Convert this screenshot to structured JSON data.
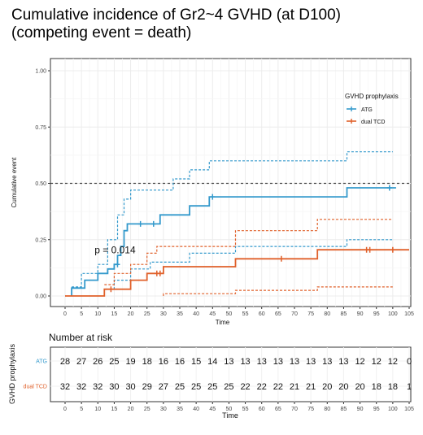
{
  "title_line1": "Cumulative incidence of Gr2~4 GVHD (at D100)",
  "title_line2": "(competing event = death)",
  "chart_data": {
    "type": "line",
    "xlabel": "Time",
    "ylabel": "Cumulative event",
    "xlim": [
      0,
      105
    ],
    "ylim": [
      0,
      1
    ],
    "x_ticks": [
      0,
      5,
      10,
      15,
      20,
      25,
      30,
      35,
      40,
      45,
      50,
      55,
      60,
      65,
      70,
      75,
      80,
      85,
      90,
      95,
      100,
      105
    ],
    "y_ticks": [
      "0.00",
      "0.25",
      "0.50",
      "0.75",
      "1.00"
    ],
    "y_tick_values": [
      0,
      0.25,
      0.5,
      0.75,
      1.0
    ],
    "reference_line_y": 0.5,
    "annotation": "p = 0.014",
    "annotation_pos": [
      9,
      0.19
    ],
    "grid": true,
    "legend": {
      "title": "GVHD prophylaxis",
      "placement": "top-right"
    },
    "series": [
      {
        "name": "ATG",
        "color": "#3399cc",
        "steps": [
          [
            2,
            0
          ],
          [
            2,
            0.035
          ],
          [
            6,
            0.035
          ],
          [
            6,
            0.07
          ],
          [
            10,
            0.07
          ],
          [
            10,
            0.1
          ],
          [
            13,
            0.1
          ],
          [
            13,
            0.12
          ],
          [
            15,
            0.12
          ],
          [
            15,
            0.14
          ],
          [
            16,
            0.14
          ],
          [
            16,
            0.18
          ],
          [
            17,
            0.18
          ],
          [
            17,
            0.22
          ],
          [
            18,
            0.22
          ],
          [
            18,
            0.29
          ],
          [
            19,
            0.29
          ],
          [
            19,
            0.32
          ],
          [
            29,
            0.32
          ],
          [
            29,
            0.36
          ],
          [
            38,
            0.36
          ],
          [
            38,
            0.4
          ],
          [
            44,
            0.4
          ],
          [
            44,
            0.44
          ],
          [
            86,
            0.44
          ],
          [
            86,
            0.48
          ],
          [
            101,
            0.48
          ]
        ],
        "upper": [
          [
            2,
            0.04
          ],
          [
            5,
            0.04
          ],
          [
            5,
            0.1
          ],
          [
            10,
            0.1
          ],
          [
            10,
            0.14
          ],
          [
            13,
            0.14
          ],
          [
            13,
            0.25
          ],
          [
            16,
            0.25
          ],
          [
            16,
            0.36
          ],
          [
            18,
            0.36
          ],
          [
            18,
            0.43
          ],
          [
            20,
            0.43
          ],
          [
            20,
            0.47
          ],
          [
            33,
            0.47
          ],
          [
            33,
            0.52
          ],
          [
            38,
            0.52
          ],
          [
            38,
            0.56
          ],
          [
            44,
            0.56
          ],
          [
            44,
            0.6
          ],
          [
            86,
            0.6
          ],
          [
            86,
            0.64
          ],
          [
            100,
            0.64
          ]
        ],
        "lower": [
          [
            12,
            0
          ],
          [
            12,
            0.03
          ],
          [
            15,
            0.03
          ],
          [
            15,
            0.07
          ],
          [
            20,
            0.07
          ],
          [
            20,
            0.12
          ],
          [
            26,
            0.12
          ],
          [
            26,
            0.15
          ],
          [
            38,
            0.15
          ],
          [
            38,
            0.19
          ],
          [
            52,
            0.19
          ],
          [
            52,
            0.22
          ],
          [
            86,
            0.22
          ],
          [
            86,
            0.25
          ],
          [
            100,
            0.25
          ]
        ],
        "censored": [
          [
            16,
            0.14
          ],
          [
            23,
            0.32
          ],
          [
            27,
            0.32
          ],
          [
            45,
            0.44
          ],
          [
            99,
            0.48
          ]
        ]
      },
      {
        "name": "dual TCD",
        "color": "#e0602a",
        "steps": [
          [
            0,
            0
          ],
          [
            12,
            0
          ],
          [
            12,
            0.03
          ],
          [
            20,
            0.03
          ],
          [
            20,
            0.07
          ],
          [
            25,
            0.07
          ],
          [
            25,
            0.1
          ],
          [
            30,
            0.1
          ],
          [
            30,
            0.13
          ],
          [
            52,
            0.13
          ],
          [
            52,
            0.165
          ],
          [
            77,
            0.165
          ],
          [
            77,
            0.205
          ],
          [
            105,
            0.205
          ]
        ],
        "upper": [
          [
            12,
            0.05
          ],
          [
            15,
            0.05
          ],
          [
            15,
            0.1
          ],
          [
            20,
            0.1
          ],
          [
            20,
            0.14
          ],
          [
            25,
            0.14
          ],
          [
            25,
            0.19
          ],
          [
            28,
            0.19
          ],
          [
            28,
            0.22
          ],
          [
            52,
            0.22
          ],
          [
            52,
            0.29
          ],
          [
            77,
            0.29
          ],
          [
            77,
            0.34
          ],
          [
            100,
            0.34
          ]
        ],
        "lower": [
          [
            30,
            0
          ],
          [
            30,
            0.01
          ],
          [
            52,
            0.01
          ],
          [
            52,
            0.025
          ],
          [
            77,
            0.025
          ],
          [
            77,
            0.04
          ],
          [
            100,
            0.04
          ]
        ],
        "censored": [
          [
            14,
            0.03
          ],
          [
            28,
            0.1
          ],
          [
            29,
            0.1
          ],
          [
            66,
            0.165
          ],
          [
            92,
            0.205
          ],
          [
            93,
            0.205
          ],
          [
            100,
            0.205
          ]
        ]
      }
    ],
    "risk_table": {
      "title": "Number at risk",
      "ylabel": "GVHD prophylaxis",
      "xlabel": "Time",
      "rows": [
        {
          "label": "ATG",
          "color": "#3399cc",
          "values": [
            "28",
            "27",
            "26",
            "25",
            "19",
            "18",
            "16",
            "16",
            "15",
            "14",
            "13",
            "13",
            "13",
            "13",
            "13",
            "13",
            "13",
            "13",
            "12",
            "12",
            "12",
            "0"
          ]
        },
        {
          "label": "dual TCD",
          "color": "#e0602a",
          "values": [
            "32",
            "32",
            "32",
            "30",
            "30",
            "29",
            "27",
            "25",
            "25",
            "25",
            "25",
            "22",
            "22",
            "22",
            "21",
            "21",
            "20",
            "20",
            "20",
            "18",
            "18",
            "1"
          ]
        }
      ]
    }
  }
}
